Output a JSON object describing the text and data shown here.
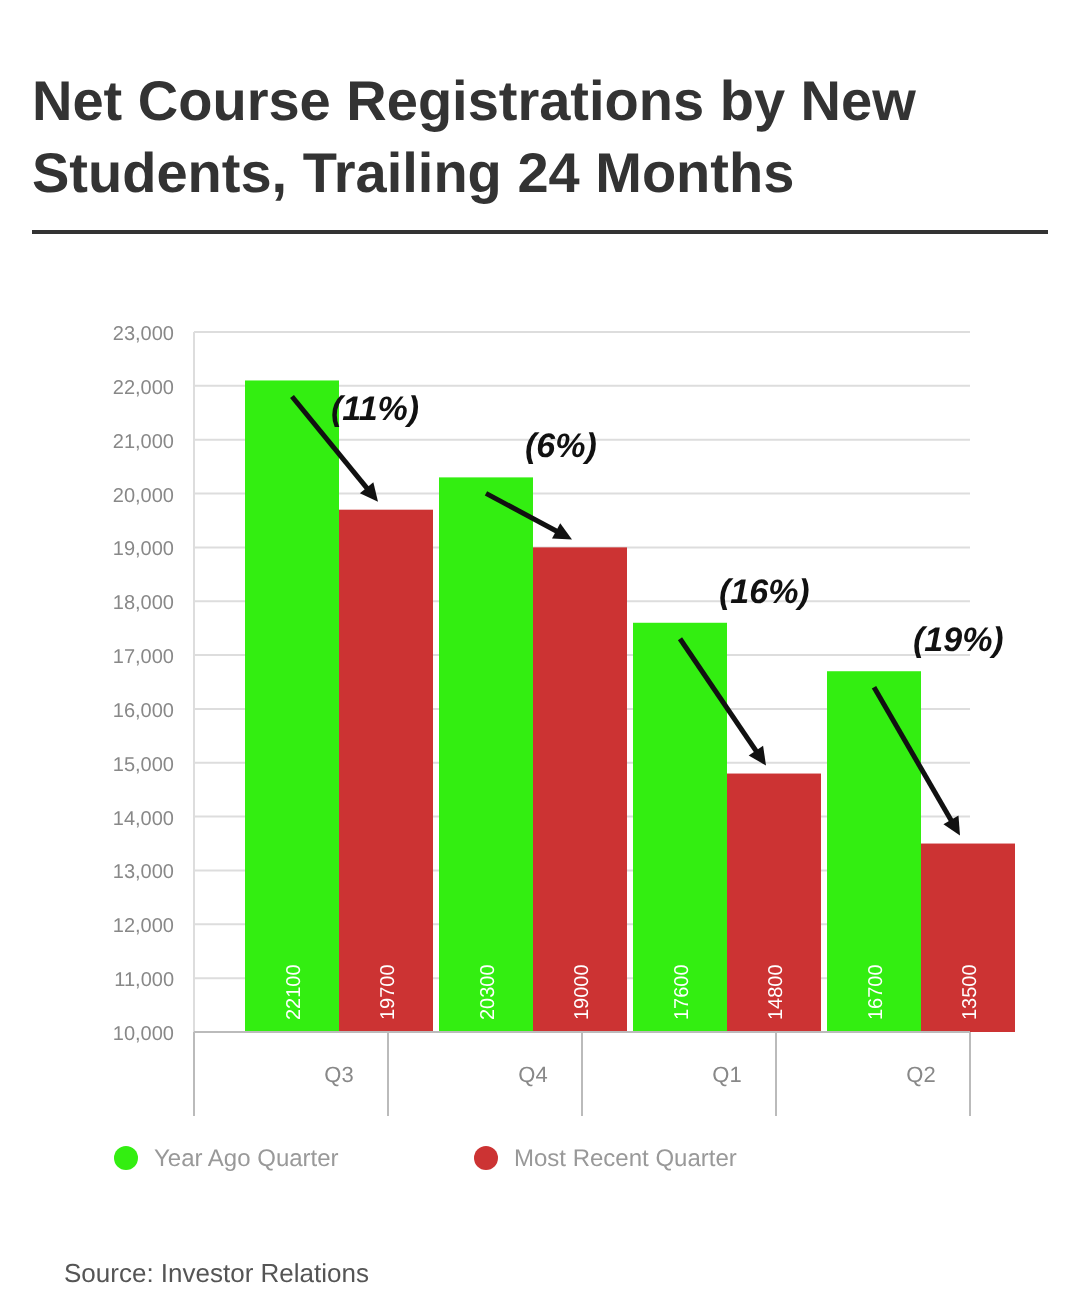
{
  "chart_data": {
    "type": "bar",
    "title": "Net Course Registrations by New Students, Trailing 24 Months",
    "categories": [
      "Q3",
      "Q4",
      "Q1",
      "Q2"
    ],
    "series": [
      {
        "name": "Year Ago Quarter",
        "color": "#33ee11",
        "values": [
          22100,
          20300,
          17600,
          16700
        ]
      },
      {
        "name": "Most Recent Quarter",
        "color": "#cc3333",
        "values": [
          19700,
          19000,
          14800,
          13500
        ]
      }
    ],
    "ylim": [
      10000,
      23000
    ],
    "yticks": [
      "10,000",
      "11,000",
      "12,000",
      "13,000",
      "14,000",
      "15,000",
      "16,000",
      "17,000",
      "18,000",
      "19,000",
      "20,000",
      "21,000",
      "22,000",
      "23,000"
    ],
    "grid": "y",
    "legend": "bottom",
    "data_labels": true,
    "annotations": [
      "(11%)",
      "(6%)",
      "(16%)",
      "(19%)",
      "Source: Investor Relations"
    ]
  }
}
